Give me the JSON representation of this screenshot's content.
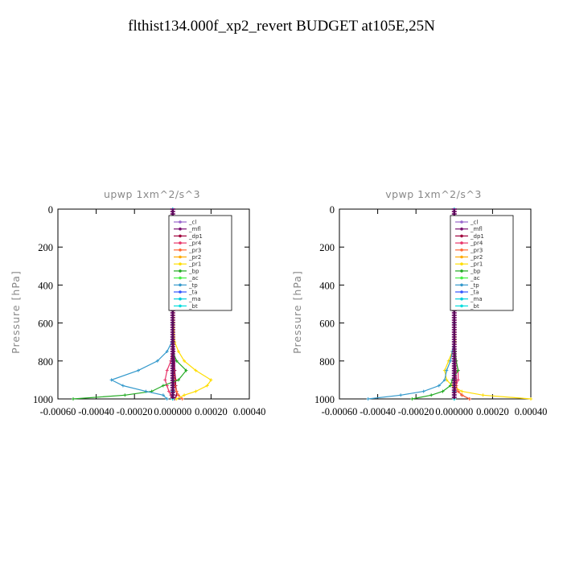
{
  "page": {
    "title": "flthist134.000f_xp2_revert  BUDGET at105E,25N"
  },
  "chart_data": [
    {
      "type": "line",
      "title": "upwp   1xm^2/s^3",
      "ylabel": "Pressure [hPa]",
      "xlabel": "",
      "xlim": [
        -0.0006,
        0.0004
      ],
      "ylim": [
        1000,
        0
      ],
      "x_ticks": [
        "-0.00060",
        "-0.00040",
        "-0.00020",
        "0.000000",
        "0.00020",
        "0.00040"
      ],
      "x_tick_values": [
        -0.0006,
        -0.0004,
        -0.0002,
        0.0,
        0.0002,
        0.0004
      ],
      "y_ticks": [
        "0",
        "200",
        "400",
        "600",
        "800",
        "1000"
      ],
      "y_tick_values": [
        0,
        200,
        400,
        600,
        800,
        1000
      ],
      "legend_position": "top-right",
      "pressure": [
        0,
        200,
        400,
        600,
        700,
        750,
        800,
        850,
        900,
        930,
        960,
        980,
        1000
      ],
      "series": [
        {
          "name": "_cl",
          "color": "#9966cc",
          "values": [
            0,
            0,
            0,
            0,
            0,
            0,
            0,
            0,
            0,
            0,
            0,
            0,
            0
          ]
        },
        {
          "name": "_mfl",
          "color": "#7a1070",
          "values": [
            0,
            0,
            0,
            2e-06,
            4e-06,
            6e-06,
            1e-05,
            1e-05,
            1e-05,
            5e-06,
            3e-06,
            2e-06,
            0
          ]
        },
        {
          "name": "_dp1",
          "color": "#a0003c",
          "values": [
            0,
            0,
            0,
            0,
            2e-06,
            3e-06,
            5e-06,
            1e-05,
            1.5e-05,
            1.5e-05,
            2e-05,
            2e-05,
            1e-05
          ]
        },
        {
          "name": "_pr4",
          "color": "#e8356a",
          "values": [
            0,
            0,
            0,
            0,
            0,
            -2e-06,
            -1e-05,
            -3e-05,
            -4e-05,
            -3e-05,
            -2e-05,
            -1e-05,
            0
          ]
        },
        {
          "name": "_pr3",
          "color": "#ff6633",
          "values": [
            0,
            0,
            0,
            0,
            0,
            0,
            2e-06,
            5e-06,
            1e-05,
            1e-05,
            2e-05,
            3e-05,
            5e-05
          ]
        },
        {
          "name": "_pr2",
          "color": "#ffaa00",
          "values": [
            0,
            0,
            0,
            0,
            0,
            0,
            0,
            0,
            0,
            0,
            0,
            0,
            0
          ]
        },
        {
          "name": "_pr1",
          "color": "#ffdd00",
          "values": [
            0,
            0,
            0,
            5e-06,
            1e-05,
            3e-05,
            6e-05,
            0.00012,
            0.0002,
            0.00018,
            0.00012,
            6e-05,
            2e-05
          ]
        },
        {
          "name": "_bp",
          "color": "#22aa22",
          "values": [
            0,
            0,
            0,
            0,
            0,
            0,
            2e-05,
            7e-05,
            3e-05,
            -5e-05,
            -0.00011,
            -0.00025,
            -0.00052
          ]
        },
        {
          "name": "_ac",
          "color": "#44ee44",
          "values": [
            0,
            0,
            0,
            0,
            0,
            0,
            0,
            0,
            0,
            0,
            0,
            0,
            0
          ]
        },
        {
          "name": "_tp",
          "color": "#3399cc",
          "values": [
            0,
            0,
            0,
            0,
            -5e-06,
            -3e-05,
            -8e-05,
            -0.00018,
            -0.00032,
            -0.00026,
            -0.00014,
            -5e-05,
            -3e-05
          ]
        },
        {
          "name": "_ta",
          "color": "#3355ff",
          "values": [
            0,
            0,
            0,
            0,
            0,
            0,
            0,
            0,
            0,
            0,
            0,
            0,
            0
          ]
        },
        {
          "name": "_ma",
          "color": "#00ccdd",
          "values": [
            0,
            0,
            0,
            0,
            0,
            0,
            0,
            0,
            0,
            0,
            0,
            0,
            0
          ]
        },
        {
          "name": "_bt",
          "color": "#00dddd",
          "values": [
            0,
            0,
            0,
            0,
            0,
            0,
            0,
            0,
            0,
            0,
            0,
            0,
            0
          ]
        }
      ]
    },
    {
      "type": "line",
      "title": "vpwp   1xm^2/s^3",
      "ylabel": "Pressure [hPa]",
      "xlabel": "",
      "xlim": [
        -0.0006,
        0.0004
      ],
      "ylim": [
        1000,
        0
      ],
      "x_ticks": [
        "-0.00060",
        "-0.00040",
        "-0.00020",
        "0.000000",
        "0.00020",
        "0.00040"
      ],
      "x_tick_values": [
        -0.0006,
        -0.0004,
        -0.0002,
        0.0,
        0.0002,
        0.0004
      ],
      "y_ticks": [
        "0",
        "200",
        "400",
        "600",
        "800",
        "1000"
      ],
      "y_tick_values": [
        0,
        200,
        400,
        600,
        800,
        1000
      ],
      "legend_position": "top-right",
      "pressure": [
        0,
        200,
        400,
        600,
        700,
        750,
        800,
        850,
        900,
        930,
        960,
        980,
        1000
      ],
      "series": [
        {
          "name": "_cl",
          "color": "#9966cc",
          "values": [
            0,
            0,
            0,
            0,
            0,
            0,
            0,
            0,
            0,
            0,
            0,
            0,
            0
          ]
        },
        {
          "name": "_mfl",
          "color": "#7a1070",
          "values": [
            0,
            0,
            0,
            1e-06,
            2e-06,
            3e-06,
            4e-06,
            4e-06,
            3e-06,
            2e-06,
            1e-06,
            0,
            0
          ]
        },
        {
          "name": "_dp1",
          "color": "#a0003c",
          "values": [
            0,
            0,
            0,
            0,
            0,
            2e-06,
            4e-06,
            8e-06,
            1e-05,
            1e-05,
            2e-05,
            4e-05,
            8e-05
          ]
        },
        {
          "name": "_pr4",
          "color": "#e8356a",
          "values": [
            0,
            0,
            0,
            0,
            0,
            5e-06,
            1e-05,
            2e-05,
            2e-05,
            1e-05,
            5e-06,
            2e-06,
            0
          ]
        },
        {
          "name": "_pr3",
          "color": "#ff6633",
          "values": [
            0,
            0,
            0,
            0,
            0,
            0,
            0,
            2e-06,
            5e-06,
            1e-05,
            2e-05,
            4e-05,
            8e-05
          ]
        },
        {
          "name": "_pr2",
          "color": "#ffaa00",
          "values": [
            0,
            0,
            0,
            0,
            0,
            0,
            0,
            0,
            0,
            0,
            0,
            0,
            0
          ]
        },
        {
          "name": "_pr1",
          "color": "#ffdd00",
          "values": [
            0,
            0,
            0,
            2e-06,
            5e-06,
            -1e-05,
            -3e-05,
            -5e-05,
            -4e-05,
            -1e-05,
            4e-05,
            0.00015,
            0.0004
          ]
        },
        {
          "name": "_bp",
          "color": "#22aa22",
          "values": [
            0,
            0,
            0,
            0,
            0,
            5e-06,
            1e-05,
            2e-05,
            -1e-05,
            -2e-05,
            -6e-05,
            -0.00012,
            -0.00022
          ]
        },
        {
          "name": "_ac",
          "color": "#44ee44",
          "values": [
            0,
            0,
            0,
            0,
            0,
            0,
            0,
            0,
            0,
            0,
            0,
            0,
            0
          ]
        },
        {
          "name": "_tp",
          "color": "#3399cc",
          "values": [
            0,
            0,
            0,
            0,
            0,
            -1e-05,
            -2e-05,
            -4e-05,
            -5e-05,
            -8e-05,
            -0.00016,
            -0.00028,
            -0.00045
          ]
        },
        {
          "name": "_ta",
          "color": "#3355ff",
          "values": [
            0,
            0,
            0,
            0,
            0,
            0,
            0,
            0,
            0,
            0,
            0,
            0,
            0
          ]
        },
        {
          "name": "_ma",
          "color": "#00ccdd",
          "values": [
            0,
            0,
            0,
            0,
            0,
            0,
            0,
            0,
            0,
            0,
            0,
            0,
            0
          ]
        },
        {
          "name": "_bt",
          "color": "#00dddd",
          "values": [
            0,
            0,
            0,
            0,
            0,
            0,
            0,
            0,
            0,
            0,
            0,
            0,
            0
          ]
        }
      ]
    }
  ]
}
